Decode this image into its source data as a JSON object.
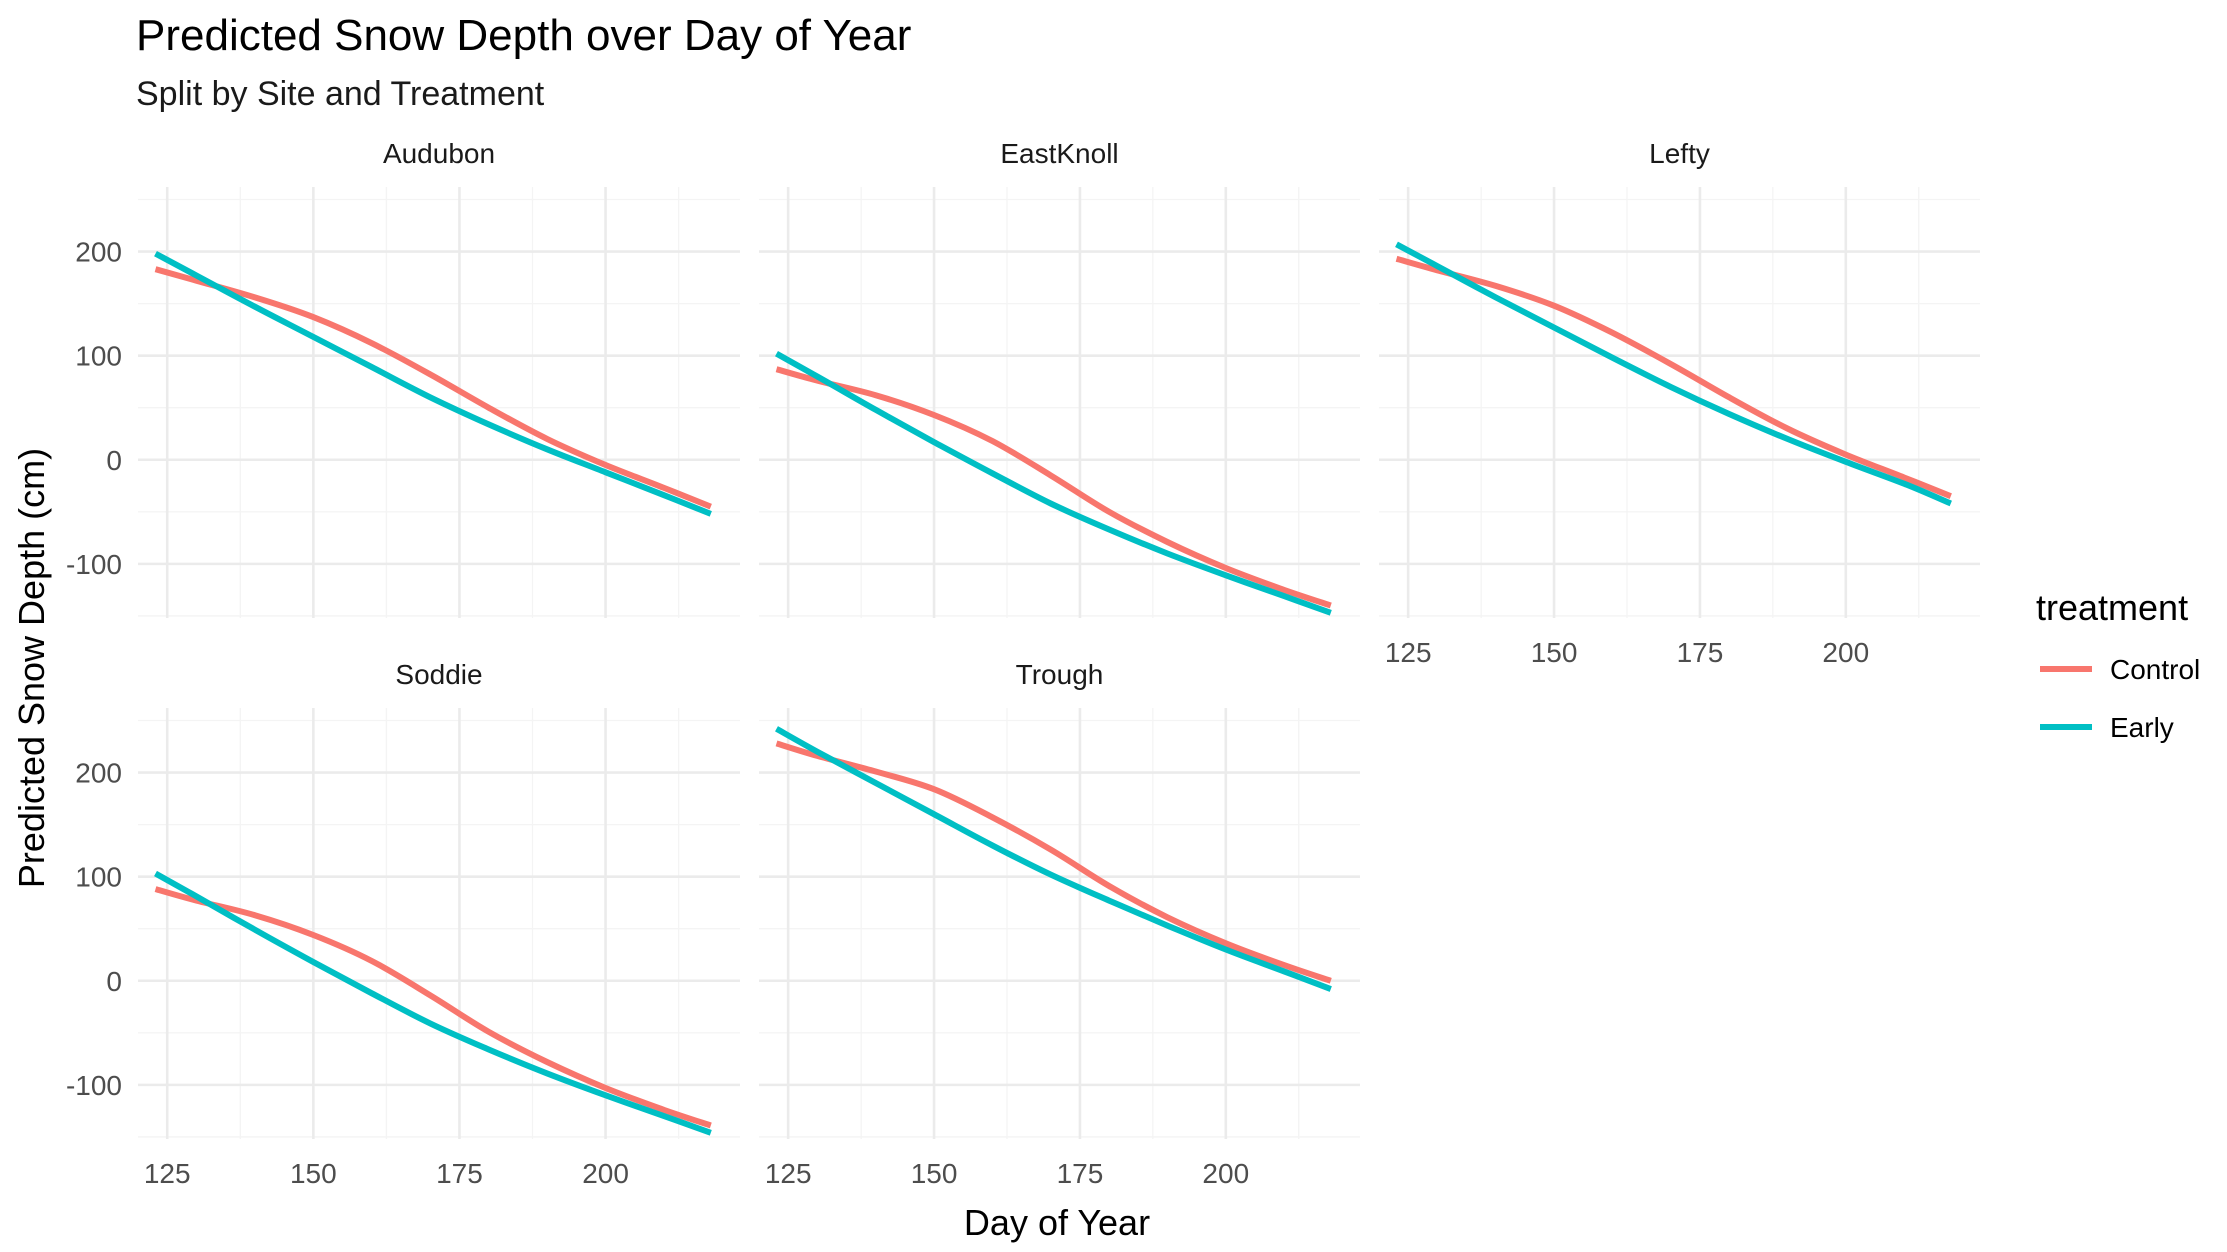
{
  "chart_data": {
    "type": "line",
    "title": "Predicted Snow Depth over Day of Year",
    "subtitle": "Split by Site and Treatment",
    "xlabel": "Day of Year",
    "ylabel": "Predicted Snow Depth (cm)",
    "xlim": [
      120,
      223
    ],
    "ylim": [
      -152,
      262
    ],
    "x_ticks": [
      125,
      150,
      175,
      200
    ],
    "y_ticks": [
      -100,
      0,
      100,
      200
    ],
    "x_tick_labels": [
      "125",
      "150",
      "175",
      "200"
    ],
    "y_tick_labels": [
      "-100",
      "0",
      "100",
      "200"
    ],
    "grid": true,
    "legend": {
      "title": "treatment",
      "position": "right",
      "entries": [
        {
          "label": "Control",
          "color": "#F8766D"
        },
        {
          "label": "Early",
          "color": "#00BFC4"
        }
      ]
    },
    "panels": [
      {
        "site": "Audubon",
        "series": [
          {
            "name": "Control",
            "color": "#F8766D",
            "x": [
              123,
              130,
              140,
              150,
              160,
              170,
              180,
              190,
              200,
              210,
              218
            ],
            "y": [
              183,
              172,
              156,
              137,
              112,
              82,
              50,
              20,
              -5,
              -27,
              -45
            ]
          },
          {
            "name": "Early",
            "color": "#00BFC4",
            "x": [
              123,
              130,
              140,
              150,
              160,
              170,
              180,
              190,
              200,
              210,
              218
            ],
            "y": [
              198,
              177,
              147,
              118,
              89,
              60,
              34,
              10,
              -12,
              -34,
              -52
            ]
          }
        ]
      },
      {
        "site": "EastKnoll",
        "series": [
          {
            "name": "Control",
            "color": "#F8766D",
            "x": [
              123,
              130,
              140,
              150,
              160,
              170,
              180,
              190,
              200,
              210,
              218
            ],
            "y": [
              87,
              76,
              62,
              43,
              18,
              -15,
              -50,
              -79,
              -104,
              -125,
              -140
            ]
          },
          {
            "name": "Early",
            "color": "#00BFC4",
            "x": [
              123,
              130,
              140,
              150,
              160,
              170,
              180,
              190,
              200,
              210,
              218
            ],
            "y": [
              102,
              80,
              48,
              17,
              -13,
              -42,
              -67,
              -90,
              -111,
              -131,
              -147
            ]
          }
        ]
      },
      {
        "site": "Lefty",
        "series": [
          {
            "name": "Control",
            "color": "#F8766D",
            "x": [
              123,
              130,
              140,
              150,
              160,
              170,
              180,
              190,
              200,
              210,
              218
            ],
            "y": [
              193,
              182,
              167,
              148,
              122,
              92,
              60,
              30,
              5,
              -17,
              -35
            ]
          },
          {
            "name": "Early",
            "color": "#00BFC4",
            "x": [
              123,
              130,
              140,
              150,
              160,
              170,
              180,
              190,
              200,
              210,
              218
            ],
            "y": [
              207,
              186,
              156,
              127,
              98,
              70,
              44,
              20,
              -2,
              -23,
              -42
            ]
          }
        ]
      },
      {
        "site": "Soddie",
        "series": [
          {
            "name": "Control",
            "color": "#F8766D",
            "x": [
              123,
              130,
              140,
              150,
              160,
              170,
              180,
              190,
              200,
              210,
              218
            ],
            "y": [
              88,
              77,
              63,
              44,
              19,
              -14,
              -49,
              -78,
              -103,
              -124,
              -139
            ]
          },
          {
            "name": "Early",
            "color": "#00BFC4",
            "x": [
              123,
              130,
              140,
              150,
              160,
              170,
              180,
              190,
              200,
              210,
              218
            ],
            "y": [
              103,
              81,
              49,
              18,
              -12,
              -41,
              -66,
              -89,
              -110,
              -130,
              -146
            ]
          }
        ]
      },
      {
        "site": "Trough",
        "series": [
          {
            "name": "Control",
            "color": "#F8766D",
            "x": [
              123,
              130,
              140,
              150,
              160,
              170,
              180,
              190,
              200,
              210,
              218
            ],
            "y": [
              228,
              216,
              201,
              184,
              157,
              126,
              91,
              61,
              36,
              15,
              0
            ]
          },
          {
            "name": "Early",
            "color": "#00BFC4",
            "x": [
              123,
              130,
              140,
              150,
              160,
              170,
              180,
              190,
              200,
              210,
              218
            ],
            "y": [
              242,
              220,
              190,
              160,
              130,
              102,
              77,
              53,
              30,
              9,
              -8
            ]
          }
        ]
      }
    ]
  }
}
